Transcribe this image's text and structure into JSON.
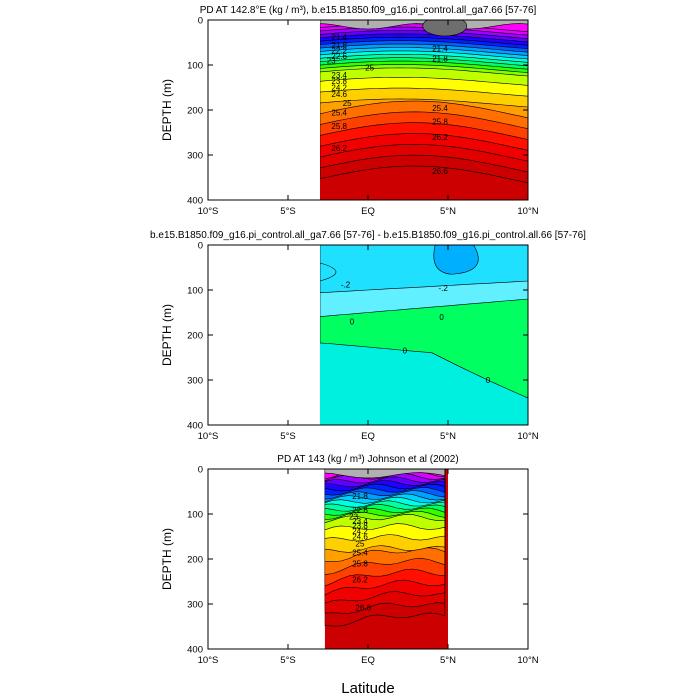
{
  "figure": {
    "xlabel_shared": "Latitude"
  },
  "chart_data": [
    {
      "type": "heatmap",
      "title": "PD AT 142.8°E (kg / m³), b.e15.B1850.f09_g16.pi_control.all_ga7.66 [57-76]",
      "ylabel": "DEPTH (m)",
      "xlim": [
        -10,
        10
      ],
      "ylim": [
        400,
        0
      ],
      "x_tick_labels": [
        "10°S",
        "5°S",
        "EQ",
        "5°N",
        "10°N"
      ],
      "x_ticks": [
        -10,
        -5,
        0,
        5,
        10
      ],
      "y_tick_labels": [
        "0",
        "100",
        "200",
        "300",
        "400"
      ],
      "y_ticks": [
        0,
        100,
        200,
        300,
        400
      ],
      "data_x_range": [
        -3,
        10
      ],
      "levels": [
        21.0,
        21.2,
        21.4,
        21.6,
        21.8,
        22.0,
        22.2,
        22.4,
        22.6,
        22.8,
        23.0,
        23.2,
        23.4,
        23.6,
        23.8,
        24.0,
        24.2,
        24.4,
        24.6,
        24.8,
        25.0,
        25.2,
        25.4,
        25.6,
        25.8,
        26.0,
        26.2,
        26.4,
        26.6,
        26.8
      ],
      "contour_labels": [
        {
          "text": "21.4",
          "x": -1.8,
          "y": 38
        },
        {
          "text": "21.8",
          "x": -1.8,
          "y": 55
        },
        {
          "text": "22.2",
          "x": -1.8,
          "y": 68
        },
        {
          "text": "22.6",
          "x": -1.8,
          "y": 80
        },
        {
          "text": "23",
          "x": -2.3,
          "y": 90
        },
        {
          "text": "25",
          "x": 0.1,
          "y": 105
        },
        {
          "text": "23.4",
          "x": -1.8,
          "y": 122
        },
        {
          "text": "23.8",
          "x": -1.8,
          "y": 136
        },
        {
          "text": "24.2",
          "x": -1.8,
          "y": 150
        },
        {
          "text": "24.6",
          "x": -1.8,
          "y": 164
        },
        {
          "text": "25",
          "x": -1.3,
          "y": 184
        },
        {
          "text": "25.4",
          "x": -1.8,
          "y": 206
        },
        {
          "text": "25.8",
          "x": -1.8,
          "y": 236
        },
        {
          "text": "26.2",
          "x": -1.8,
          "y": 284
        },
        {
          "text": "21.4",
          "x": 4.5,
          "y": 63
        },
        {
          "text": "21.8",
          "x": 4.5,
          "y": 86
        },
        {
          "text": "25.4",
          "x": 4.5,
          "y": 196
        },
        {
          "text": "25.8",
          "x": 4.5,
          "y": 226
        },
        {
          "text": "26.2",
          "x": 4.5,
          "y": 260
        },
        {
          "text": "26.6",
          "x": 4.5,
          "y": 336
        }
      ]
    },
    {
      "type": "heatmap",
      "title": "b.e15.B1850.f09_g16.pi_control.all_ga7.66 [57-76] - b.e15.B1850.f09_g16.pi_control.all.66 [57-76]",
      "ylabel": "DEPTH (m)",
      "xlim": [
        -10,
        10
      ],
      "ylim": [
        400,
        0
      ],
      "x_tick_labels": [
        "10°S",
        "5°S",
        "EQ",
        "5°N",
        "10°N"
      ],
      "x_ticks": [
        -10,
        -5,
        0,
        5,
        10
      ],
      "y_tick_labels": [
        "0",
        "100",
        "200",
        "300",
        "400"
      ],
      "y_ticks": [
        0,
        100,
        200,
        300,
        400
      ],
      "data_x_range": [
        -3,
        10
      ],
      "levels": [
        -0.4,
        -0.2,
        0.0,
        0.2
      ],
      "contour_labels": [
        {
          "text": "-.2",
          "x": -1.4,
          "y": 88
        },
        {
          "text": "-.2",
          "x": 4.7,
          "y": 96
        },
        {
          "text": "0",
          "x": -1.0,
          "y": 170
        },
        {
          "text": "0",
          "x": 4.6,
          "y": 160
        },
        {
          "text": "0",
          "x": 2.3,
          "y": 234
        },
        {
          "text": "0",
          "x": 7.5,
          "y": 300
        }
      ]
    },
    {
      "type": "heatmap",
      "title": "PD AT 143 (kg / m³) Johnson et al (2002)",
      "ylabel": "DEPTH (m)",
      "xlim": [
        -10,
        10
      ],
      "ylim": [
        400,
        0
      ],
      "x_tick_labels": [
        "10°S",
        "5°S",
        "EQ",
        "5°N",
        "10°N"
      ],
      "x_ticks": [
        -10,
        -5,
        0,
        5,
        10
      ],
      "y_tick_labels": [
        "0",
        "100",
        "200",
        "300",
        "400"
      ],
      "y_ticks": [
        0,
        100,
        200,
        300,
        400
      ],
      "data_x_range": [
        -2.7,
        5.0
      ],
      "contour_labels": [
        {
          "text": "21.8",
          "x": -0.5,
          "y": 60
        },
        {
          "text": "22.6",
          "x": -0.5,
          "y": 91
        },
        {
          "text": "23",
          "x": -0.9,
          "y": 105
        },
        {
          "text": "23.4",
          "x": -0.5,
          "y": 115
        },
        {
          "text": "23.8",
          "x": -0.5,
          "y": 126
        },
        {
          "text": "24.2",
          "x": -0.5,
          "y": 138
        },
        {
          "text": "24.6",
          "x": -0.5,
          "y": 150
        },
        {
          "text": "25",
          "x": -0.5,
          "y": 165
        },
        {
          "text": "25.4",
          "x": -0.5,
          "y": 185
        },
        {
          "text": "25.8",
          "x": -0.5,
          "y": 210
        },
        {
          "text": "26.2",
          "x": -0.5,
          "y": 245
        },
        {
          "text": "26.6",
          "x": -0.3,
          "y": 308
        }
      ]
    }
  ]
}
